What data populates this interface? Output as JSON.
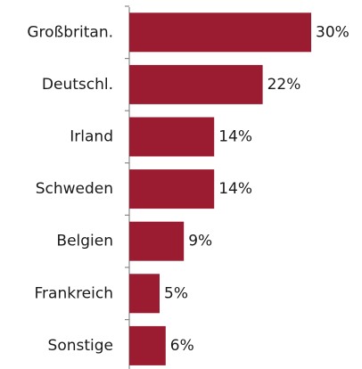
{
  "chart_data": {
    "type": "bar",
    "orientation": "horizontal",
    "categories": [
      "Großbritan.",
      "Deutschl.",
      "Irland",
      "Schweden",
      "Belgien",
      "Frankreich",
      "Sonstige"
    ],
    "values": [
      30,
      22,
      14,
      14,
      9,
      5,
      6
    ],
    "value_labels": [
      "30%",
      "22%",
      "14%",
      "14%",
      "9%",
      "5%",
      "6%"
    ],
    "color": "#9b1c31"
  }
}
